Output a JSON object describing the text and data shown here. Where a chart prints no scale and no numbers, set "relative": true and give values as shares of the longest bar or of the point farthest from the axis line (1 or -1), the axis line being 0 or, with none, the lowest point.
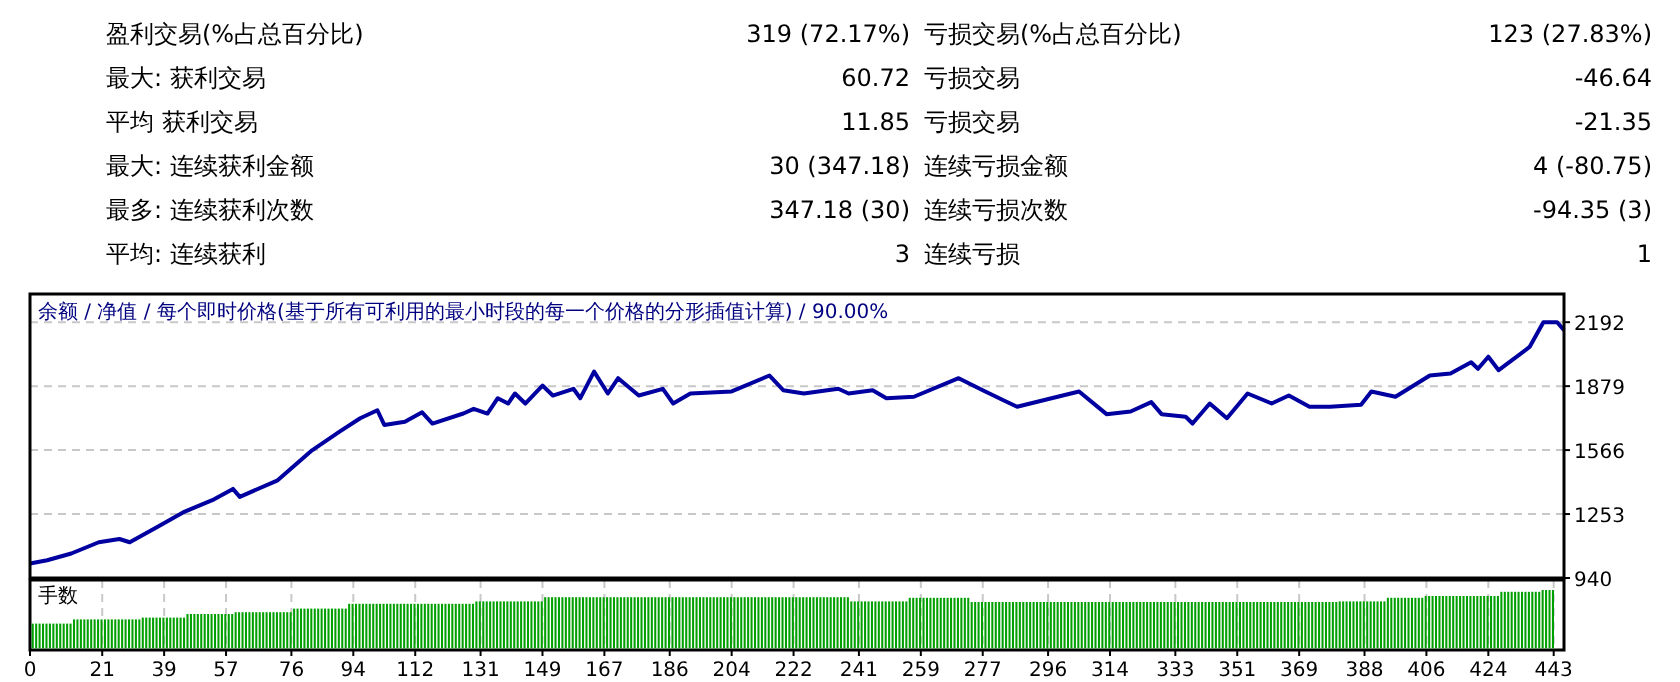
{
  "chart_data": [
    {
      "type": "other",
      "annotations": [
        "盈利交易(%占总百分比)",
        "319 (72.17%)",
        "亏损交易(%占总百分比)",
        "123 (27.83%)",
        "最大: 获利交易",
        "60.72",
        "亏损交易",
        "-46.64",
        "平均 获利交易",
        "11.85",
        "亏损交易",
        "-21.35",
        "最大: 连续获利金额",
        "30 (347.18)",
        "连续亏损金额",
        "4 (-80.75)",
        "最多: 连续获利次数",
        "347.18 (30)",
        "连续亏损次数",
        "-94.35 (3)",
        "平均: 连续获利",
        "3",
        "连续亏损",
        "1"
      ]
    },
    {
      "type": "line",
      "title": "余额 / 净值 / 每个即时价格(基于所有可利用的最小时段的每一个价格的分形插值计算) / 90.00%",
      "xlim": [
        0,
        446
      ],
      "ylim": [
        940,
        2330
      ],
      "yticks": [
        940,
        1253,
        1566,
        1879,
        2192
      ],
      "tick_labels": "y",
      "grid": true,
      "series": [
        {
          "color": "#0000a0",
          "x": [
            0,
            5,
            12,
            20,
            26,
            29,
            37,
            45,
            53,
            59,
            61,
            72,
            82,
            90,
            96,
            101,
            103,
            109,
            114,
            117,
            126,
            129,
            133,
            136,
            139,
            141,
            144,
            149,
            152,
            158,
            160,
            164,
            168,
            171,
            177,
            184,
            187,
            192,
            204,
            215,
            219,
            225,
            235,
            238,
            245,
            249,
            257,
            270,
            277,
            283,
            287,
            297,
            305,
            313,
            320,
            326,
            329,
            336,
            338,
            343,
            348,
            354,
            361,
            366,
            372,
            378,
            387,
            390,
            397,
            407,
            413,
            419,
            421,
            424,
            427,
            436,
            440,
            444,
            446
          ],
          "values": [
            1011,
            1027,
            1060,
            1115,
            1131,
            1115,
            1190,
            1265,
            1321,
            1376,
            1337,
            1418,
            1565,
            1656,
            1722,
            1761,
            1689,
            1705,
            1751,
            1696,
            1745,
            1768,
            1745,
            1820,
            1794,
            1843,
            1794,
            1882,
            1833,
            1866,
            1820,
            1950,
            1843,
            1918,
            1833,
            1866,
            1794,
            1843,
            1853,
            1931,
            1859,
            1843,
            1866,
            1843,
            1859,
            1820,
            1827,
            1918,
            1859,
            1810,
            1778,
            1820,
            1853,
            1742,
            1755,
            1801,
            1742,
            1729,
            1696,
            1794,
            1722,
            1843,
            1794,
            1833,
            1778,
            1778,
            1788,
            1853,
            1827,
            1931,
            1941,
            1996,
            1964,
            2023,
            1957,
            2071,
            2192,
            2192,
            2153
          ]
        }
      ]
    },
    {
      "type": "bar",
      "title": "手数",
      "relative": true,
      "xlim": [
        0,
        446
      ],
      "xticks": [
        0,
        21,
        39,
        57,
        76,
        94,
        112,
        131,
        149,
        167,
        186,
        204,
        222,
        241,
        259,
        277,
        296,
        314,
        333,
        351,
        369,
        388,
        406,
        424,
        443
      ],
      "tick_labels": "x",
      "grid": "x",
      "x": [
        0,
        1,
        2,
        3,
        4,
        5,
        6,
        7,
        8,
        9,
        10,
        11,
        12,
        13,
        14,
        15,
        16,
        17,
        18,
        19,
        20,
        21,
        22,
        23,
        24,
        25,
        26,
        27,
        28,
        29,
        30,
        31,
        32,
        33,
        34,
        35,
        36,
        37,
        38,
        39,
        40,
        41,
        42,
        43,
        44,
        45,
        46,
        47,
        48,
        49,
        50,
        51,
        52,
        53,
        54,
        55,
        56,
        57,
        58,
        59,
        60,
        61,
        62,
        63,
        64,
        65,
        66,
        67,
        68,
        69,
        70,
        71,
        72,
        73,
        74,
        75,
        76,
        77,
        78,
        79,
        80,
        81,
        82,
        83,
        84,
        85,
        86,
        87,
        88,
        89,
        90,
        91,
        92,
        93,
        94,
        95,
        96,
        97,
        98,
        99,
        100,
        101,
        102,
        103,
        104,
        105,
        106,
        107,
        108,
        109,
        110,
        111,
        112,
        113,
        114,
        115,
        116,
        117,
        118,
        119,
        120,
        121,
        122,
        123,
        124,
        125,
        126,
        127,
        128,
        129,
        130,
        131,
        132,
        133,
        134,
        135,
        136,
        137,
        138,
        139,
        140,
        141,
        142,
        143,
        144,
        145,
        146,
        147,
        148,
        149,
        150,
        151,
        152,
        153,
        154,
        155,
        156,
        157,
        158,
        159,
        160,
        161,
        162,
        163,
        164,
        165,
        166,
        167,
        168,
        169,
        170,
        171,
        172,
        173,
        174,
        175,
        176,
        177,
        178,
        179,
        180,
        181,
        182,
        183,
        184,
        185,
        186,
        187,
        188,
        189,
        190,
        191,
        192,
        193,
        194,
        195,
        196,
        197,
        198,
        199,
        200,
        201,
        202,
        203,
        204,
        205,
        206,
        207,
        208,
        209,
        210,
        211,
        212,
        213,
        214,
        215,
        216,
        217,
        218,
        219,
        220,
        221,
        222,
        223,
        224,
        225,
        226,
        227,
        228,
        229,
        230,
        231,
        232,
        233,
        234,
        235,
        236,
        237,
        238,
        239,
        240,
        241,
        242,
        243,
        244,
        245,
        246,
        247,
        248,
        249,
        250,
        251,
        252,
        253,
        254,
        255,
        256,
        257,
        258,
        259,
        260,
        261,
        262,
        263,
        264,
        265,
        266,
        267,
        268,
        269,
        270,
        271,
        272,
        273,
        274,
        275,
        276,
        277,
        278,
        279,
        280,
        281,
        282,
        283,
        284,
        285,
        286,
        287,
        288,
        289,
        290,
        291,
        292,
        293,
        294,
        295,
        296,
        297,
        298,
        299,
        300,
        301,
        302,
        303,
        304,
        305,
        306,
        307,
        308,
        309,
        310,
        311,
        312,
        313,
        314,
        315,
        316,
        317,
        318,
        319,
        320,
        321,
        322,
        323,
        324,
        325,
        326,
        327,
        328,
        329,
        330,
        331,
        332,
        333,
        334,
        335,
        336,
        337,
        338,
        339,
        340,
        341,
        342,
        343,
        344,
        345,
        346,
        347,
        348,
        349,
        350,
        351,
        352,
        353,
        354,
        355,
        356,
        357,
        358,
        359,
        360,
        361,
        362,
        363,
        364,
        365,
        366,
        367,
        368,
        369,
        370,
        371,
        372,
        373,
        374,
        375,
        376,
        377,
        378,
        379,
        380,
        381,
        382,
        383,
        384,
        385,
        386,
        387,
        388,
        389,
        390,
        391,
        392,
        393,
        394,
        395,
        396,
        397,
        398,
        399,
        400,
        401,
        402,
        403,
        404,
        405,
        406,
        407,
        408,
        409,
        410,
        411,
        412,
        413,
        414,
        415,
        416,
        417,
        418,
        419,
        420,
        421,
        422,
        423,
        424,
        425,
        426,
        427,
        428,
        429,
        430,
        431,
        432,
        433,
        434,
        435,
        436,
        437,
        438,
        439,
        440,
        441,
        442
      ],
      "color": "#00a000",
      "values": [
        0.44,
        0.44,
        0.44,
        0.44,
        0.44,
        0.44,
        0.44,
        0.44,
        0.44,
        0.44,
        0.44,
        0.44,
        0.51,
        0.51,
        0.51,
        0.51,
        0.51,
        0.51,
        0.51,
        0.51,
        0.51,
        0.51,
        0.51,
        0.51,
        0.51,
        0.51,
        0.51,
        0.51,
        0.51,
        0.51,
        0.51,
        0.51,
        0.54,
        0.54,
        0.54,
        0.54,
        0.54,
        0.54,
        0.54,
        0.54,
        0.54,
        0.54,
        0.54,
        0.54,
        0.54,
        0.6,
        0.6,
        0.6,
        0.6,
        0.6,
        0.6,
        0.6,
        0.6,
        0.6,
        0.6,
        0.6,
        0.6,
        0.6,
        0.6,
        0.63,
        0.63,
        0.63,
        0.63,
        0.63,
        0.63,
        0.63,
        0.63,
        0.63,
        0.63,
        0.63,
        0.63,
        0.63,
        0.63,
        0.63,
        0.63,
        0.63,
        0.69,
        0.69,
        0.69,
        0.69,
        0.69,
        0.69,
        0.69,
        0.69,
        0.69,
        0.69,
        0.69,
        0.69,
        0.69,
        0.69,
        0.69,
        0.69,
        0.77,
        0.77,
        0.77,
        0.77,
        0.77,
        0.77,
        0.77,
        0.77,
        0.77,
        0.77,
        0.77,
        0.77,
        0.77,
        0.77,
        0.77,
        0.77,
        0.77,
        0.77,
        0.77,
        0.77,
        0.77,
        0.77,
        0.77,
        0.77,
        0.77,
        0.77,
        0.77,
        0.77,
        0.77,
        0.77,
        0.77,
        0.77,
        0.77,
        0.77,
        0.77,
        0.77,
        0.77,
        0.81,
        0.81,
        0.81,
        0.81,
        0.81,
        0.81,
        0.81,
        0.81,
        0.81,
        0.81,
        0.81,
        0.81,
        0.81,
        0.81,
        0.81,
        0.81,
        0.81,
        0.81,
        0.81,
        0.81,
        0.88,
        0.88,
        0.88,
        0.88,
        0.88,
        0.88,
        0.88,
        0.88,
        0.88,
        0.88,
        0.88,
        0.88,
        0.88,
        0.88,
        0.88,
        0.88,
        0.88,
        0.88,
        0.88,
        0.88,
        0.88,
        0.88,
        0.88,
        0.88,
        0.88,
        0.88,
        0.88,
        0.88,
        0.88,
        0.88,
        0.88,
        0.88,
        0.88,
        0.88,
        0.88,
        0.88,
        0.88,
        0.88,
        0.88,
        0.88,
        0.88,
        0.88,
        0.88,
        0.88,
        0.88,
        0.88,
        0.88,
        0.88,
        0.88,
        0.88,
        0.88,
        0.88,
        0.88,
        0.88,
        0.88,
        0.88,
        0.88,
        0.88,
        0.88,
        0.88,
        0.88,
        0.88,
        0.88,
        0.88,
        0.88,
        0.88,
        0.88,
        0.88,
        0.88,
        0.88,
        0.88,
        0.88,
        0.88,
        0.88,
        0.88,
        0.88,
        0.88,
        0.88,
        0.88,
        0.88,
        0.88,
        0.88,
        0.88,
        0.88,
        0.88,
        0.88,
        0.88,
        0.88,
        0.88,
        0.81,
        0.81,
        0.81,
        0.81,
        0.81,
        0.81,
        0.81,
        0.81,
        0.81,
        0.81,
        0.81,
        0.81,
        0.81,
        0.81,
        0.81,
        0.81,
        0.81,
        0.87,
        0.87,
        0.87,
        0.87,
        0.87,
        0.87,
        0.87,
        0.87,
        0.87,
        0.87,
        0.87,
        0.87,
        0.87,
        0.87,
        0.87,
        0.87,
        0.87,
        0.87,
        0.8,
        0.8,
        0.8,
        0.8,
        0.8,
        0.8,
        0.8,
        0.8,
        0.8,
        0.8,
        0.8,
        0.8,
        0.8,
        0.8,
        0.8,
        0.8,
        0.8,
        0.8,
        0.8,
        0.8,
        0.8,
        0.8,
        0.8,
        0.8,
        0.8,
        0.8,
        0.8,
        0.8,
        0.8,
        0.8,
        0.8,
        0.8,
        0.8,
        0.8,
        0.8,
        0.8,
        0.8,
        0.8,
        0.8,
        0.8,
        0.8,
        0.8,
        0.8,
        0.8,
        0.8,
        0.8,
        0.8,
        0.8,
        0.8,
        0.8,
        0.8,
        0.8,
        0.8,
        0.8,
        0.8,
        0.8,
        0.8,
        0.8,
        0.8,
        0.8,
        0.8,
        0.8,
        0.8,
        0.8,
        0.8,
        0.8,
        0.8,
        0.8,
        0.8,
        0.8,
        0.8,
        0.8,
        0.8,
        0.8,
        0.8,
        0.8,
        0.8,
        0.8,
        0.8,
        0.8,
        0.8,
        0.8,
        0.8,
        0.8,
        0.8,
        0.8,
        0.8,
        0.8,
        0.8,
        0.8,
        0.8,
        0.8,
        0.8,
        0.8,
        0.8,
        0.8,
        0.8,
        0.8,
        0.8,
        0.8,
        0.8,
        0.8,
        0.8,
        0.8,
        0.8,
        0.8,
        0.8,
        0.81,
        0.81,
        0.81,
        0.81,
        0.81,
        0.81,
        0.81,
        0.81,
        0.81,
        0.81,
        0.81,
        0.81,
        0.81,
        0.81,
        0.87,
        0.87,
        0.87,
        0.87,
        0.87,
        0.87,
        0.87,
        0.87,
        0.87,
        0.87,
        0.87,
        0.9,
        0.9,
        0.9,
        0.9,
        0.9,
        0.9,
        0.9,
        0.9,
        0.9,
        0.9,
        0.9,
        0.9,
        0.9,
        0.9,
        0.9,
        0.9,
        0.9,
        0.9,
        0.9,
        0.9,
        0.9,
        0.9,
        0.97,
        0.97,
        0.97,
        0.97,
        0.97,
        0.97,
        0.97,
        0.97,
        0.97,
        0.97,
        0.97,
        0.97,
        1,
        1,
        1,
        1
      ]
    }
  ]
}
